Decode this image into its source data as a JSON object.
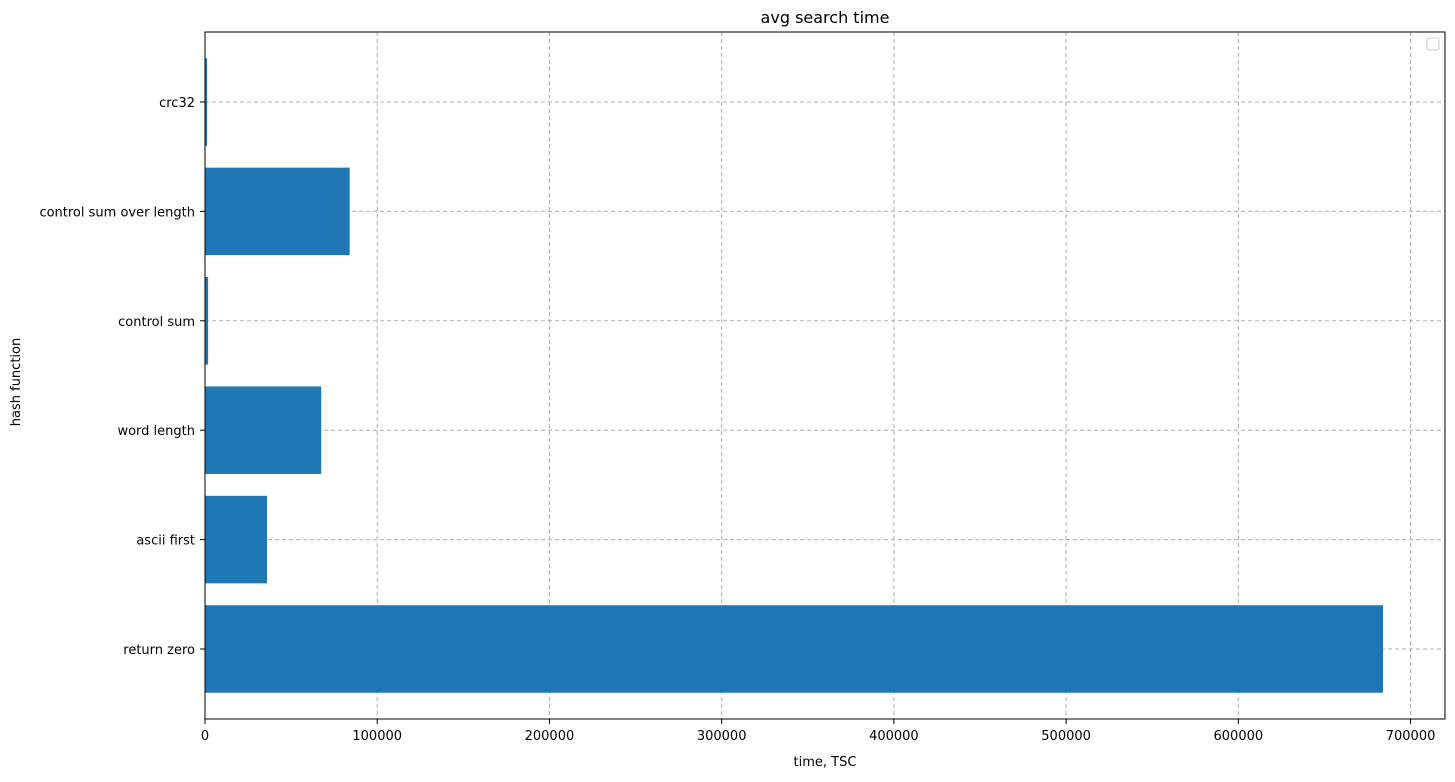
{
  "chart_data": {
    "type": "bar",
    "orientation": "horizontal",
    "title": "avg search time",
    "xlabel": "time, TSC",
    "ylabel": "hash function",
    "categories": [
      "return zero",
      "ascii first",
      "word length",
      "control sum",
      "control sum over length",
      "crc32"
    ],
    "values": [
      684000,
      36000,
      67500,
      1800,
      84000,
      1200
    ],
    "xlim": [
      0,
      720000
    ],
    "xticks": [
      0,
      100000,
      200000,
      300000,
      400000,
      500000,
      600000,
      700000
    ],
    "xtick_labels": [
      "0",
      "100000",
      "200000",
      "300000",
      "400000",
      "500000",
      "600000",
      "700000"
    ],
    "grid": true,
    "legend": {
      "visible": true,
      "placement": "top-right",
      "entries": []
    },
    "colors": {
      "bar": "#1f77b4",
      "grid": "#b0b0b0",
      "axis": "#000000"
    }
  }
}
